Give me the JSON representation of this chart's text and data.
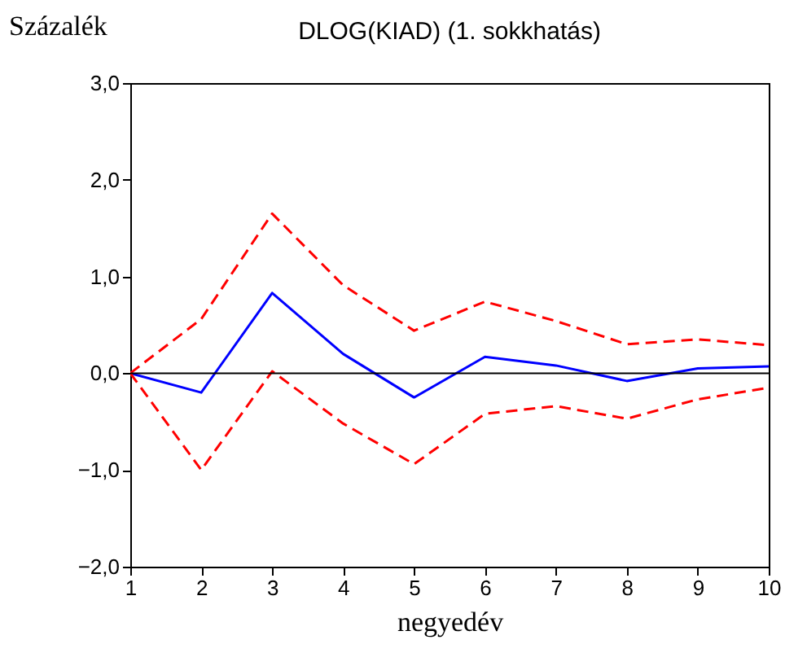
{
  "chart_data": {
    "type": "line",
    "title": "DLOG(KIAD) (1. sokkhatás)",
    "xlabel": "negyedév",
    "ylabel": "Százalék",
    "x": [
      1,
      2,
      3,
      4,
      5,
      6,
      7,
      8,
      9,
      10
    ],
    "series": [
      {
        "color": "#0000ff",
        "line_style": "solid",
        "values": [
          0,
          -0.2,
          0.83,
          0.2,
          -0.25,
          0.17,
          0.08,
          -0.08,
          0.05,
          0.07
        ]
      },
      {
        "color": "#ff0000",
        "line_style": "dashed",
        "values": [
          0,
          0.56,
          1.65,
          0.91,
          0.44,
          0.74,
          0.54,
          0.3,
          0.35,
          0.29
        ]
      },
      {
        "color": "#ff0000",
        "line_style": "dashed",
        "values": [
          0,
          -1.0,
          0.02,
          -0.52,
          -0.94,
          -0.42,
          -0.34,
          -0.47,
          -0.27,
          -0.15
        ]
      }
    ],
    "xlim": [
      1,
      10
    ],
    "xticks": [
      1,
      2,
      3,
      4,
      5,
      6,
      7,
      8,
      9,
      10
    ],
    "ylim": [
      -2,
      3
    ],
    "yticks": [
      {
        "value": -2,
        "label": "−2,0"
      },
      {
        "value": -1,
        "label": "−1,0"
      },
      {
        "value": 0,
        "label": "0,0"
      },
      {
        "value": 1,
        "label": "1,0"
      },
      {
        "value": 2,
        "label": "2,0"
      },
      {
        "value": 3,
        "label": "3,0"
      }
    ],
    "ref_lines": [
      {
        "axis": "y",
        "value": 0,
        "color": "#000000",
        "line_style": "solid"
      }
    ],
    "grid": false,
    "marker": "none"
  }
}
